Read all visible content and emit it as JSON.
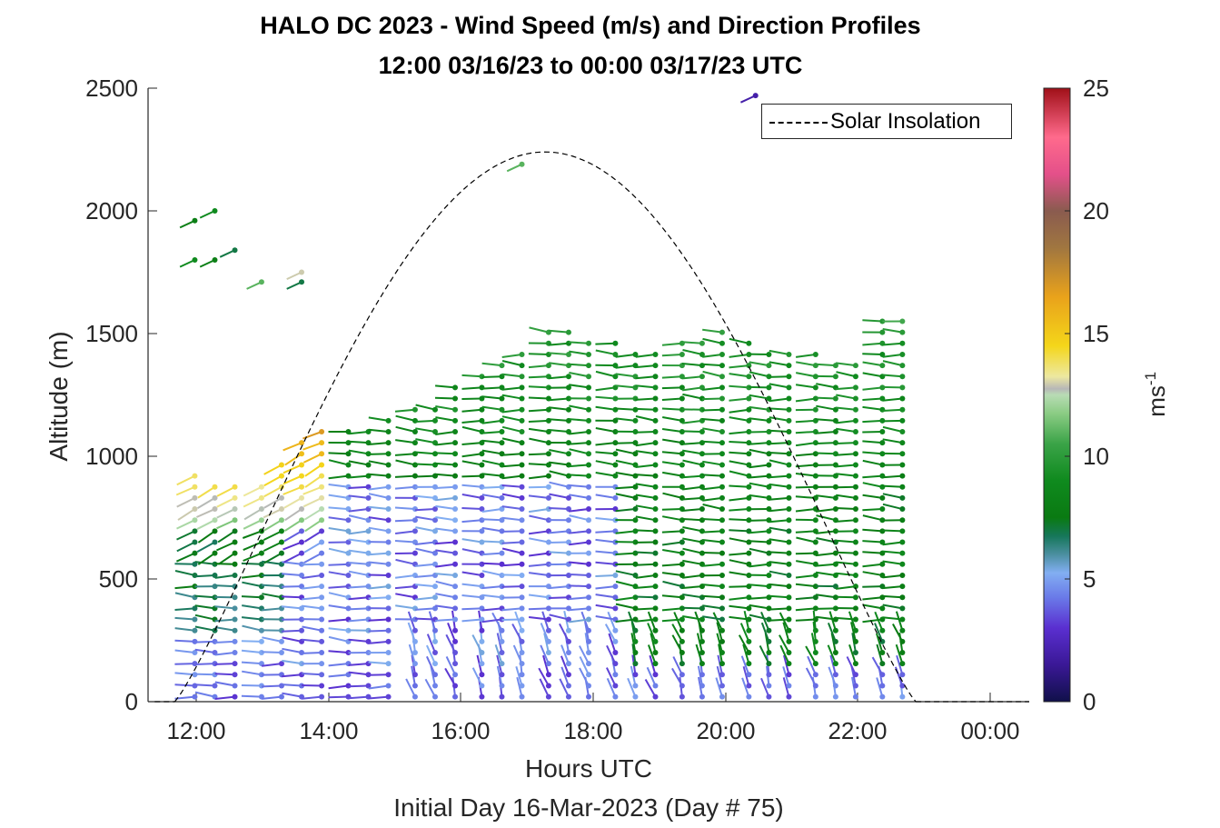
{
  "chart_data": {
    "type": "wind barb profile",
    "title": "HALO DC 2023 - Wind Speed (m/s) and Direction Profiles",
    "subtitle": "12:00 03/16/23 to 00:00 03/17/23  UTC",
    "xlabel": "Hours UTC",
    "xsublabel": "Initial Day 16-Mar-2023 (Day # 75)",
    "ylabel": "Altitude (m)",
    "xlim_hours": [
      11.4,
      24.6
    ],
    "ylim": [
      0,
      2500
    ],
    "x_ticks": [
      "12:00",
      "14:00",
      "16:00",
      "18:00",
      "20:00",
      "22:00",
      "00:00"
    ],
    "y_ticks": [
      "0",
      "500",
      "1000",
      "1500",
      "2000",
      "2500"
    ],
    "legend": {
      "label": "Solar Insolation",
      "location": "top-right"
    },
    "colorbar": {
      "label": "ms",
      "label_exponent": "-1",
      "ticks": [
        "0",
        "5",
        "10",
        "15",
        "20",
        "25"
      ],
      "range": [
        0,
        25
      ]
    },
    "solar_insolation": {
      "sunrise_hour": 11.8,
      "sunset_hour": 22.9,
      "peak_hour": 17.4,
      "peak_altitude_equiv": 2240
    },
    "profile_times_hours": [
      12.1,
      12.4,
      12.7,
      13.1,
      13.4,
      13.7,
      14.0,
      14.4,
      14.7,
      15.0,
      15.4,
      15.7,
      16.0,
      16.4,
      16.7,
      17.0,
      17.4,
      17.7,
      18.0,
      18.4,
      18.7,
      19.0,
      19.4,
      19.7,
      20.0,
      20.4,
      20.7,
      21.0,
      21.4,
      21.7,
      22.0,
      22.4,
      22.7
    ],
    "profile_top_altitudes": [
      960,
      900,
      900,
      890,
      1000,
      1060,
      1100,
      1120,
      1140,
      1160,
      1200,
      1210,
      1300,
      1360,
      1380,
      1420,
      1540,
      1520,
      1500,
      1460,
      1440,
      1420,
      1460,
      1480,
      1510,
      1500,
      1440,
      1420,
      1420,
      1400,
      1400,
      1550,
      1560
    ],
    "upper_isolated_points": [
      {
        "time": 12.1,
        "alt": 1960,
        "speed": 8
      },
      {
        "time": 12.4,
        "alt": 2000,
        "speed": 9
      },
      {
        "time": 12.1,
        "alt": 1800,
        "speed": 9
      },
      {
        "time": 12.4,
        "alt": 1800,
        "speed": 8
      },
      {
        "time": 12.7,
        "alt": 1840,
        "speed": 7
      },
      {
        "time": 13.1,
        "alt": 1710,
        "speed": 11
      },
      {
        "time": 13.7,
        "alt": 1750,
        "speed": 13
      },
      {
        "time": 13.7,
        "alt": 1710,
        "speed": 7
      },
      {
        "time": 17.0,
        "alt": 2190,
        "speed": 11
      },
      {
        "time": 20.5,
        "alt": 2470,
        "speed": 2
      }
    ]
  }
}
